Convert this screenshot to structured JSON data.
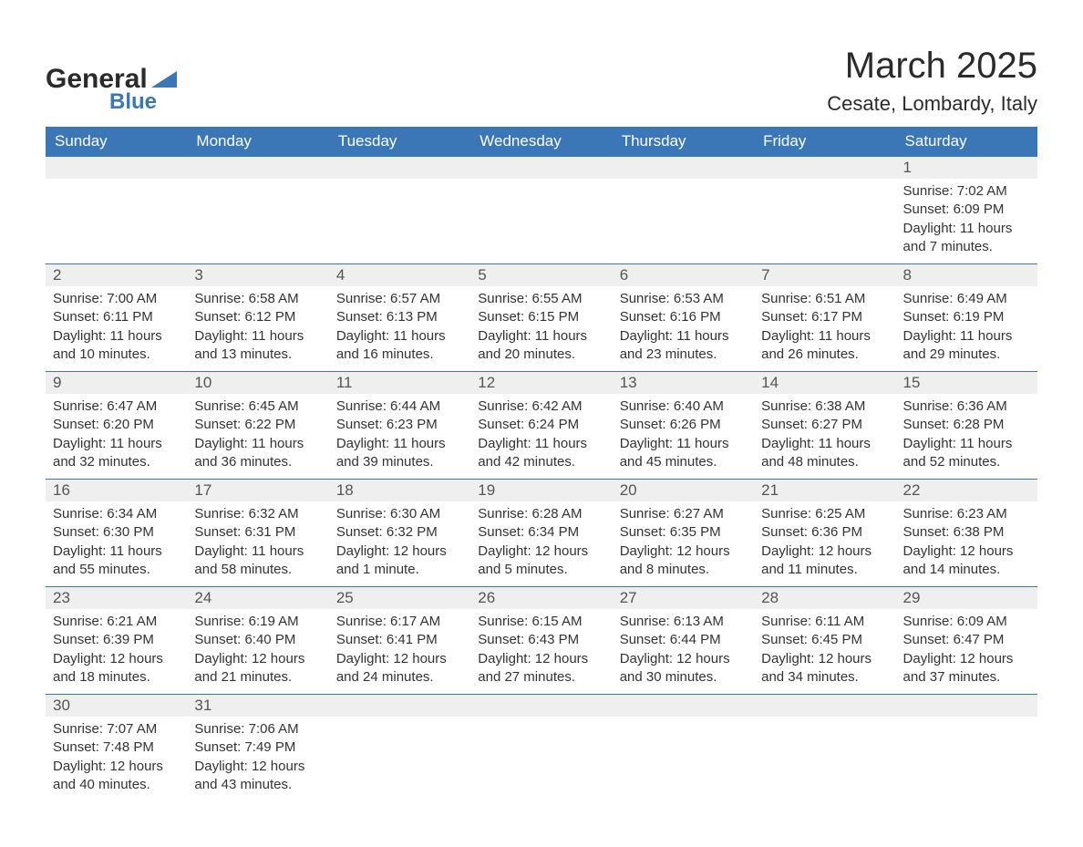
{
  "brand": {
    "word1": "General",
    "word2": "Blue",
    "word1_color": "#2b2b2b",
    "word2_color": "#3b77b6",
    "triangle_color": "#3b77b6"
  },
  "header": {
    "month_title": "March 2025",
    "location": "Cesate, Lombardy, Italy"
  },
  "styling": {
    "header_bg": "#3b77b6",
    "header_text": "#ffffff",
    "daynum_bg": "#efefef",
    "daynum_text": "#555555",
    "body_text": "#333333",
    "row_border": "#3b77b6",
    "page_bg": "#ffffff",
    "month_title_fontsize": 40,
    "location_fontsize": 22,
    "dayheader_fontsize": 17,
    "cell_fontsize": 15
  },
  "calendar": {
    "day_headers": [
      "Sunday",
      "Monday",
      "Tuesday",
      "Wednesday",
      "Thursday",
      "Friday",
      "Saturday"
    ],
    "labels": {
      "sunrise_prefix": "Sunrise: ",
      "sunset_prefix": "Sunset: ",
      "daylight_prefix": "Daylight: "
    },
    "weeks": [
      [
        {
          "day": "",
          "sunrise": "",
          "sunset": "",
          "daylight": ""
        },
        {
          "day": "",
          "sunrise": "",
          "sunset": "",
          "daylight": ""
        },
        {
          "day": "",
          "sunrise": "",
          "sunset": "",
          "daylight": ""
        },
        {
          "day": "",
          "sunrise": "",
          "sunset": "",
          "daylight": ""
        },
        {
          "day": "",
          "sunrise": "",
          "sunset": "",
          "daylight": ""
        },
        {
          "day": "",
          "sunrise": "",
          "sunset": "",
          "daylight": ""
        },
        {
          "day": "1",
          "sunrise": "7:02 AM",
          "sunset": "6:09 PM",
          "daylight": "11 hours and 7 minutes."
        }
      ],
      [
        {
          "day": "2",
          "sunrise": "7:00 AM",
          "sunset": "6:11 PM",
          "daylight": "11 hours and 10 minutes."
        },
        {
          "day": "3",
          "sunrise": "6:58 AM",
          "sunset": "6:12 PM",
          "daylight": "11 hours and 13 minutes."
        },
        {
          "day": "4",
          "sunrise": "6:57 AM",
          "sunset": "6:13 PM",
          "daylight": "11 hours and 16 minutes."
        },
        {
          "day": "5",
          "sunrise": "6:55 AM",
          "sunset": "6:15 PM",
          "daylight": "11 hours and 20 minutes."
        },
        {
          "day": "6",
          "sunrise": "6:53 AM",
          "sunset": "6:16 PM",
          "daylight": "11 hours and 23 minutes."
        },
        {
          "day": "7",
          "sunrise": "6:51 AM",
          "sunset": "6:17 PM",
          "daylight": "11 hours and 26 minutes."
        },
        {
          "day": "8",
          "sunrise": "6:49 AM",
          "sunset": "6:19 PM",
          "daylight": "11 hours and 29 minutes."
        }
      ],
      [
        {
          "day": "9",
          "sunrise": "6:47 AM",
          "sunset": "6:20 PM",
          "daylight": "11 hours and 32 minutes."
        },
        {
          "day": "10",
          "sunrise": "6:45 AM",
          "sunset": "6:22 PM",
          "daylight": "11 hours and 36 minutes."
        },
        {
          "day": "11",
          "sunrise": "6:44 AM",
          "sunset": "6:23 PM",
          "daylight": "11 hours and 39 minutes."
        },
        {
          "day": "12",
          "sunrise": "6:42 AM",
          "sunset": "6:24 PM",
          "daylight": "11 hours and 42 minutes."
        },
        {
          "day": "13",
          "sunrise": "6:40 AM",
          "sunset": "6:26 PM",
          "daylight": "11 hours and 45 minutes."
        },
        {
          "day": "14",
          "sunrise": "6:38 AM",
          "sunset": "6:27 PM",
          "daylight": "11 hours and 48 minutes."
        },
        {
          "day": "15",
          "sunrise": "6:36 AM",
          "sunset": "6:28 PM",
          "daylight": "11 hours and 52 minutes."
        }
      ],
      [
        {
          "day": "16",
          "sunrise": "6:34 AM",
          "sunset": "6:30 PM",
          "daylight": "11 hours and 55 minutes."
        },
        {
          "day": "17",
          "sunrise": "6:32 AM",
          "sunset": "6:31 PM",
          "daylight": "11 hours and 58 minutes."
        },
        {
          "day": "18",
          "sunrise": "6:30 AM",
          "sunset": "6:32 PM",
          "daylight": "12 hours and 1 minute."
        },
        {
          "day": "19",
          "sunrise": "6:28 AM",
          "sunset": "6:34 PM",
          "daylight": "12 hours and 5 minutes."
        },
        {
          "day": "20",
          "sunrise": "6:27 AM",
          "sunset": "6:35 PM",
          "daylight": "12 hours and 8 minutes."
        },
        {
          "day": "21",
          "sunrise": "6:25 AM",
          "sunset": "6:36 PM",
          "daylight": "12 hours and 11 minutes."
        },
        {
          "day": "22",
          "sunrise": "6:23 AM",
          "sunset": "6:38 PM",
          "daylight": "12 hours and 14 minutes."
        }
      ],
      [
        {
          "day": "23",
          "sunrise": "6:21 AM",
          "sunset": "6:39 PM",
          "daylight": "12 hours and 18 minutes."
        },
        {
          "day": "24",
          "sunrise": "6:19 AM",
          "sunset": "6:40 PM",
          "daylight": "12 hours and 21 minutes."
        },
        {
          "day": "25",
          "sunrise": "6:17 AM",
          "sunset": "6:41 PM",
          "daylight": "12 hours and 24 minutes."
        },
        {
          "day": "26",
          "sunrise": "6:15 AM",
          "sunset": "6:43 PM",
          "daylight": "12 hours and 27 minutes."
        },
        {
          "day": "27",
          "sunrise": "6:13 AM",
          "sunset": "6:44 PM",
          "daylight": "12 hours and 30 minutes."
        },
        {
          "day": "28",
          "sunrise": "6:11 AM",
          "sunset": "6:45 PM",
          "daylight": "12 hours and 34 minutes."
        },
        {
          "day": "29",
          "sunrise": "6:09 AM",
          "sunset": "6:47 PM",
          "daylight": "12 hours and 37 minutes."
        }
      ],
      [
        {
          "day": "30",
          "sunrise": "7:07 AM",
          "sunset": "7:48 PM",
          "daylight": "12 hours and 40 minutes."
        },
        {
          "day": "31",
          "sunrise": "7:06 AM",
          "sunset": "7:49 PM",
          "daylight": "12 hours and 43 minutes."
        },
        {
          "day": "",
          "sunrise": "",
          "sunset": "",
          "daylight": ""
        },
        {
          "day": "",
          "sunrise": "",
          "sunset": "",
          "daylight": ""
        },
        {
          "day": "",
          "sunrise": "",
          "sunset": "",
          "daylight": ""
        },
        {
          "day": "",
          "sunrise": "",
          "sunset": "",
          "daylight": ""
        },
        {
          "day": "",
          "sunrise": "",
          "sunset": "",
          "daylight": ""
        }
      ]
    ]
  }
}
